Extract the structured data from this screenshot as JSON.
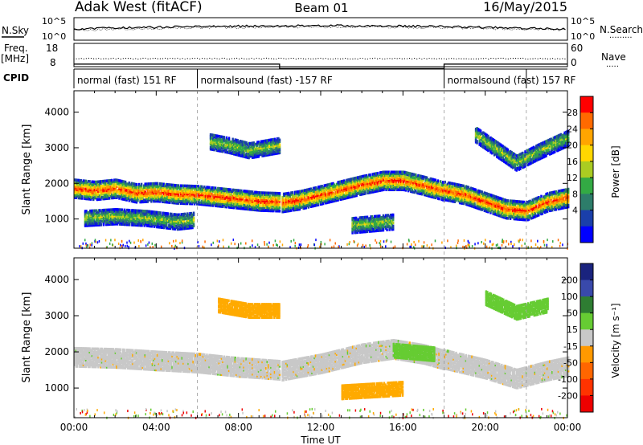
{
  "header": {
    "radar": "Adak West (fitACF)",
    "beam": "Beam 01",
    "date": "16/May/2015"
  },
  "noise_panel": {
    "left_label": "N.Sky",
    "right_label": "N.Search",
    "tick_top": "10^5",
    "tick_bottom": "10^0"
  },
  "freq_panel": {
    "left_label_1": "Freq.",
    "left_label_2": "[MHz]",
    "right_label": "Nave",
    "left_ticks": [
      "18",
      "8"
    ],
    "right_ticks": [
      "60",
      "0"
    ]
  },
  "cpid": {
    "label": "CPID",
    "segments": [
      {
        "label": "normal (fast) 151 RF",
        "start_hour": 0,
        "end_hour": 6
      },
      {
        "label": "normalsound (fast) -157 RF",
        "start_hour": 6,
        "end_hour": 18
      },
      {
        "label": "normalsound (fast) 157 RF",
        "start_hour": 18,
        "end_hour": 22
      }
    ]
  },
  "chart_data": [
    {
      "type": "heatmap",
      "name": "power",
      "xlabel": "",
      "ylabel": "Slant Range [km]",
      "xlim": [
        0,
        24
      ],
      "ylim": [
        180,
        4600
      ],
      "yticks": [
        "1000",
        "2000",
        "3000",
        "4000"
      ],
      "colorbar": {
        "label": "Power [dB]",
        "ticks": [
          "28",
          "24",
          "20",
          "16",
          "12",
          "8",
          "4"
        ],
        "colors": [
          "#ff0000",
          "#ff6a00",
          "#ffa500",
          "#ffd700",
          "#aacc22",
          "#33aa44",
          "#2d7d6a",
          "#1a3faa",
          "#0000ff"
        ]
      },
      "bands": [
        {
          "kind": "main",
          "points": [
            [
              0,
              1880
            ],
            [
              1,
              1820
            ],
            [
              2,
              1880
            ],
            [
              3,
              1750
            ],
            [
              4,
              1780
            ],
            [
              5,
              1720
            ],
            [
              6,
              1700
            ],
            [
              7,
              1640
            ],
            [
              8,
              1580
            ],
            [
              9,
              1520
            ],
            [
              10,
              1500
            ]
          ]
        },
        {
          "kind": "main",
          "points": [
            [
              10.1,
              1480
            ],
            [
              11,
              1560
            ],
            [
              12,
              1700
            ],
            [
              13,
              1840
            ],
            [
              14,
              1980
            ],
            [
              15,
              2100
            ],
            [
              16,
              2100
            ],
            [
              17,
              1960
            ],
            [
              18,
              1800
            ]
          ]
        },
        {
          "kind": "main",
          "points": [
            [
              18,
              1820
            ],
            [
              19,
              1700
            ],
            [
              20,
              1500
            ],
            [
              21,
              1300
            ],
            [
              22,
              1250
            ],
            [
              23,
              1500
            ],
            [
              24,
              1620
            ]
          ]
        },
        {
          "kind": "upper",
          "points": [
            [
              6.6,
              3200
            ],
            [
              7.5,
              3100
            ],
            [
              8.5,
              2950
            ],
            [
              9.5,
              3050
            ],
            [
              10,
              3100
            ]
          ]
        },
        {
          "kind": "low",
          "points": [
            [
              0.5,
              1050
            ],
            [
              2,
              1100
            ],
            [
              3.5,
              1050
            ],
            [
              5,
              950
            ],
            [
              5.8,
              1000
            ]
          ]
        },
        {
          "kind": "low",
          "points": [
            [
              13.5,
              850
            ],
            [
              14.5,
              900
            ],
            [
              15.5,
              950
            ]
          ]
        },
        {
          "kind": "upper",
          "points": [
            [
              19.5,
              3400
            ],
            [
              20.5,
              3000
            ],
            [
              21.5,
              2600
            ],
            [
              22.5,
              2900
            ],
            [
              24,
              3300
            ]
          ]
        }
      ]
    },
    {
      "type": "heatmap",
      "name": "velocity",
      "xlabel": "Time UT",
      "ylabel": "Slant Range [km]",
      "xlim": [
        0,
        24
      ],
      "ylim": [
        180,
        4600
      ],
      "xticks": [
        "00:00",
        "04:00",
        "08:00",
        "12:00",
        "16:00",
        "20:00",
        "00:00"
      ],
      "yticks": [
        "1000",
        "2000",
        "3000",
        "4000"
      ],
      "colorbar": {
        "label": "Velocity [m s⁻¹]",
        "ticks": [
          "200",
          "100",
          "50",
          "15",
          "-15",
          "-50",
          "-100",
          "-200"
        ],
        "colors": [
          "#1a237e",
          "#3949ab",
          "#2e7d32",
          "#66cc33",
          "#c8c8c8",
          "#ff9900",
          "#ff6600",
          "#ff3300",
          "#ee0000"
        ]
      },
      "bands": [
        {
          "kind": "ground",
          "points": [
            [
              0,
              1880
            ],
            [
              2,
              1850
            ],
            [
              4,
              1780
            ],
            [
              6,
              1720
            ],
            [
              8,
              1600
            ],
            [
              10,
              1520
            ]
          ]
        },
        {
          "kind": "ground",
          "points": [
            [
              10.1,
              1500
            ],
            [
              12,
              1700
            ],
            [
              14,
              1980
            ],
            [
              15.5,
              2100
            ],
            [
              17,
              1960
            ],
            [
              18,
              1800
            ]
          ]
        },
        {
          "kind": "ground",
          "points": [
            [
              18,
              1820
            ],
            [
              20,
              1550
            ],
            [
              21.5,
              1280
            ],
            [
              23,
              1500
            ],
            [
              24,
              1620
            ]
          ]
        },
        {
          "kind": "orange",
          "points": [
            [
              7,
              3300
            ],
            [
              8.5,
              3150
            ],
            [
              10,
              3150
            ]
          ]
        },
        {
          "kind": "green",
          "points": [
            [
              15.5,
              2050
            ],
            [
              16.5,
              2000
            ],
            [
              17.5,
              1950
            ]
          ]
        },
        {
          "kind": "green",
          "points": [
            [
              20,
              3500
            ],
            [
              21.5,
              3100
            ],
            [
              23,
              3300
            ]
          ]
        },
        {
          "kind": "orange",
          "points": [
            [
              13,
              900
            ],
            [
              14.5,
              950
            ],
            [
              16,
              1000
            ]
          ]
        }
      ]
    }
  ]
}
